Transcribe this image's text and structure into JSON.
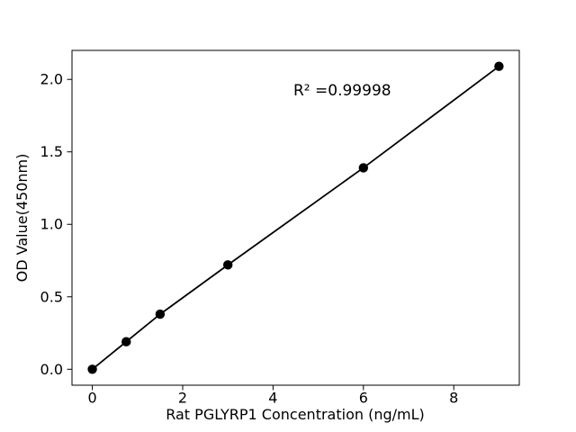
{
  "chart_data": {
    "type": "scatter",
    "title": "",
    "xlabel": "Rat PGLYRP1 Concentration (ng/mL)",
    "ylabel": "OD Value(450nm)",
    "annotation": "R² =0.99998",
    "x": [
      0,
      0.75,
      1.5,
      3,
      6,
      9
    ],
    "y": [
      0.0,
      0.19,
      0.38,
      0.72,
      1.39,
      2.09
    ],
    "fit_line": true,
    "xlim": [
      -0.45,
      9.45
    ],
    "ylim": [
      -0.11,
      2.2
    ],
    "xticks": {
      "values": [
        0,
        2,
        4,
        6,
        8
      ],
      "labels": [
        "0",
        "2",
        "4",
        "6",
        "8"
      ]
    },
    "yticks": {
      "values": [
        0,
        0.5,
        1.0,
        1.5,
        2.0
      ],
      "labels": [
        "0.0",
        "0.5",
        "1.0",
        "1.5",
        "2.0"
      ]
    },
    "grid": false,
    "legend": null,
    "colors": {
      "line": "#000000",
      "marker": "#000000",
      "spine": "#000000",
      "background": "#ffffff"
    }
  }
}
